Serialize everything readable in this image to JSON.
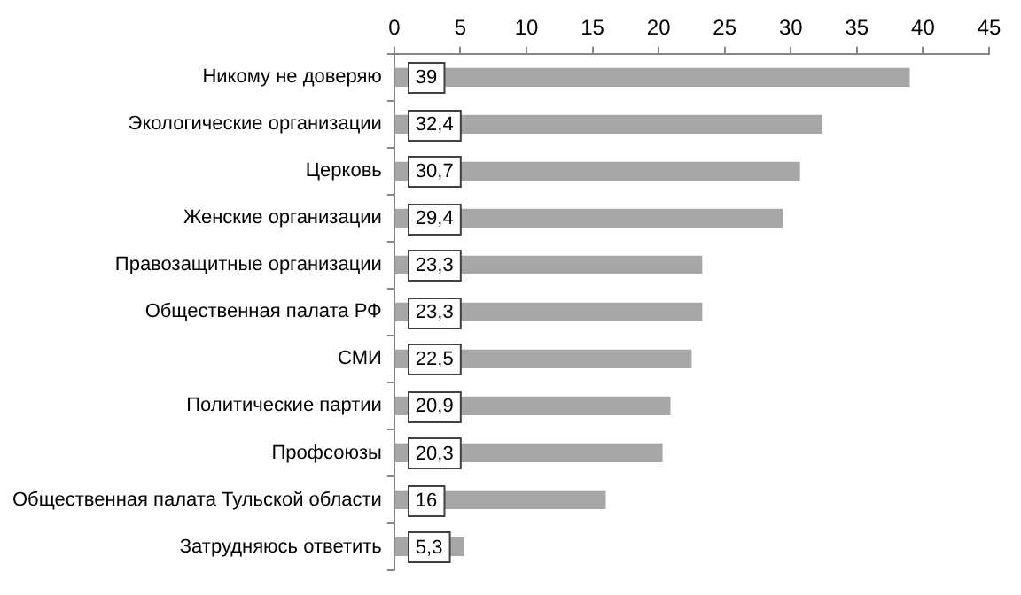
{
  "chart_data": {
    "type": "bar",
    "orientation": "horizontal",
    "categories": [
      "Никому не доверяю",
      "Экологические организации",
      "Церковь",
      "Женские организации",
      "Правозащитные организации",
      "Общественная палата РФ",
      "СМИ",
      "Политические партии",
      "Профсоюзы",
      "Общественная палата Тульской области",
      "Затрудняюсь ответить"
    ],
    "values": [
      39,
      32.4,
      30.7,
      29.4,
      23.3,
      23.3,
      22.5,
      20.9,
      20.3,
      16,
      5.3
    ],
    "value_labels": [
      "39",
      "32,4",
      "30,7",
      "29,4",
      "23,3",
      "23,3",
      "22,5",
      "20,9",
      "20,3",
      "16",
      "5,3"
    ],
    "color": "#a6a6a6",
    "xlim": [
      0,
      45
    ],
    "xticks": [
      0,
      5,
      10,
      15,
      20,
      25,
      30,
      35,
      40,
      45
    ],
    "grid": false,
    "legend": false
  }
}
